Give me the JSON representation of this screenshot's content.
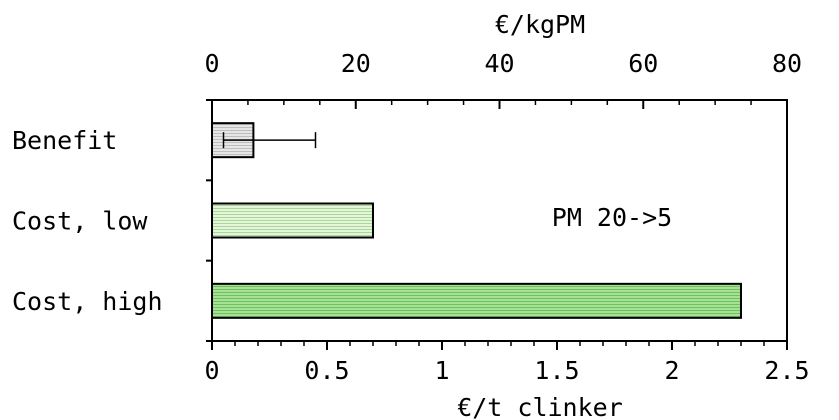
{
  "chart_data": {
    "type": "bar",
    "orientation": "horizontal",
    "categories": [
      "Benefit",
      "Cost, low",
      "Cost, high"
    ],
    "values": [
      0.18,
      0.7,
      2.3
    ],
    "error_bars": [
      {
        "category": "Benefit",
        "low": 0.05,
        "high": 0.45
      }
    ],
    "bar_colors": [
      "#e0e0e0",
      "#d6f0c8",
      "#9fdc8f"
    ],
    "annotation": "PM 20->5",
    "xlabel_bottom": "€/t clinker",
    "xlabel_top": "€/kgPM",
    "xlim_bottom": [
      0,
      2.5
    ],
    "xticks_bottom": [
      "0",
      "0.5",
      "1",
      "1.5",
      "2",
      "2.5"
    ],
    "xlim_top": [
      0,
      80
    ],
    "xticks_top": [
      "0",
      "20",
      "40",
      "60",
      "80"
    ],
    "grid": false
  }
}
